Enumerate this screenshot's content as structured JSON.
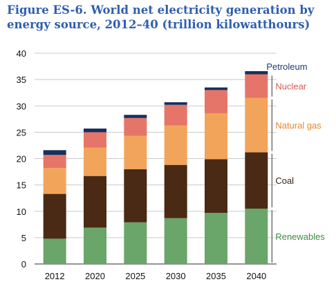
{
  "chart_data": {
    "type": "bar",
    "stacked": true,
    "title": "Figure ES-6. World net electricity generation by energy source, 2012–40 (trillion kilowatthours)",
    "xlabel": "",
    "ylabel": "",
    "ylim": [
      0,
      40
    ],
    "yticks": [
      0,
      5,
      10,
      15,
      20,
      25,
      30,
      35,
      40
    ],
    "grid": true,
    "legend": "right",
    "categories": [
      "2012",
      "2020",
      "2025",
      "2030",
      "2035",
      "2040"
    ],
    "series": [
      {
        "name": "Renewables",
        "color": "#6aa56a",
        "label_color": "#3f8a3f",
        "values": [
          4.8,
          6.9,
          7.9,
          8.7,
          9.7,
          10.5
        ]
      },
      {
        "name": "Coal",
        "color": "#4a2a14",
        "label_color": "#3a1f0d",
        "values": [
          8.5,
          9.8,
          10.1,
          10.1,
          10.2,
          10.7
        ]
      },
      {
        "name": "Natural gas",
        "color": "#f2a55a",
        "label_color": "#e8862a",
        "values": [
          4.9,
          5.4,
          6.3,
          7.5,
          8.7,
          10.3
        ]
      },
      {
        "name": "Nuclear",
        "color": "#e57569",
        "label_color": "#d65b50",
        "values": [
          2.5,
          2.9,
          3.4,
          3.9,
          4.4,
          4.5
        ]
      },
      {
        "name": "Petroleum",
        "color": "#17305c",
        "label_color": "#1f3a73",
        "values": [
          0.9,
          0.7,
          0.6,
          0.5,
          0.5,
          0.6
        ]
      }
    ]
  }
}
